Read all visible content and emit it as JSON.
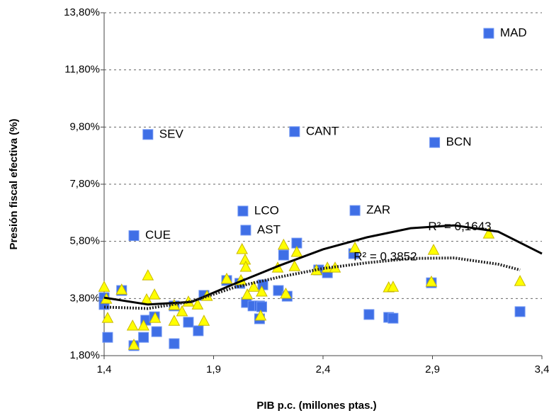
{
  "chart_data": {
    "type": "scatter",
    "x_label": "PIB p.c. (millones ptas.)",
    "y_label": "Presión fiscal efectiva (%)",
    "xlim": [
      1.4,
      3.4
    ],
    "ylim": [
      1.8,
      13.8
    ],
    "xticks": [
      {
        "value": 1.4,
        "label": "1,4"
      },
      {
        "value": 1.9,
        "label": "1,9"
      },
      {
        "value": 2.4,
        "label": "2,4"
      },
      {
        "value": 2.9,
        "label": "2,9"
      },
      {
        "value": 3.4,
        "label": "3,4"
      }
    ],
    "yticks": [
      {
        "value": 1.8,
        "label": "1,80%"
      },
      {
        "value": 3.8,
        "label": "3,80%"
      },
      {
        "value": 5.8,
        "label": "5,80%"
      },
      {
        "value": 7.8,
        "label": "7,80%"
      },
      {
        "value": 9.8,
        "label": "9,80%"
      },
      {
        "value": 11.8,
        "label": "11,80%"
      },
      {
        "value": 13.8,
        "label": "13,80%"
      }
    ],
    "grid": true,
    "series": [
      {
        "marker": "square",
        "color": "#3f6fe6",
        "x": [
          3.157,
          1.6,
          2.27,
          2.91,
          2.546,
          2.034,
          2.047,
          1.536,
          1.4,
          1.4,
          1.416,
          1.48,
          1.536,
          1.58,
          1.59,
          1.63,
          1.64,
          1.72,
          1.72,
          1.785,
          1.83,
          1.856,
          1.96,
          2.02,
          2.05,
          2.08,
          2.11,
          2.12,
          2.11,
          2.196,
          2.125,
          2.22,
          2.236,
          2.28,
          2.38,
          2.42,
          2.54,
          2.61,
          2.7,
          2.72,
          2.895,
          3.3
        ],
        "values": [
          13.08,
          9.54,
          9.64,
          9.26,
          6.88,
          6.86,
          6.19,
          6.0,
          3.83,
          3.59,
          2.44,
          4.08,
          2.15,
          2.44,
          3.04,
          3.16,
          2.64,
          2.22,
          3.54,
          2.97,
          2.67,
          3.91,
          4.43,
          4.33,
          3.66,
          3.54,
          3.54,
          3.51,
          3.09,
          4.08,
          4.28,
          5.32,
          3.88,
          5.74,
          4.8,
          4.7,
          5.37,
          3.24,
          3.14,
          3.11,
          4.35,
          3.34
        ],
        "labels": [
          "MAD",
          "SEV",
          "CANT",
          "BCN",
          "ZAR",
          "LCO",
          "AST",
          "CUE",
          null,
          null,
          null,
          null,
          null,
          null,
          null,
          null,
          null,
          null,
          null,
          null,
          null,
          null,
          null,
          null,
          null,
          null,
          null,
          null,
          null,
          null,
          null,
          null,
          null,
          null,
          null,
          null,
          null,
          null,
          null,
          null,
          null,
          null
        ]
      },
      {
        "marker": "triangle",
        "color": "#ffff00",
        "x": [
          1.4,
          1.41,
          1.416,
          1.48,
          1.53,
          1.536,
          1.58,
          1.594,
          1.6,
          1.63,
          1.633,
          1.72,
          1.72,
          1.756,
          1.785,
          1.827,
          1.856,
          1.87,
          1.96,
          2.025,
          2.03,
          2.044,
          2.047,
          2.054,
          2.083,
          2.12,
          2.115,
          2.193,
          2.22,
          2.23,
          2.27,
          2.28,
          2.37,
          2.42,
          2.455,
          2.546,
          2.7,
          2.72,
          2.905,
          2.895,
          3.157,
          3.3
        ],
        "values": [
          4.2,
          3.78,
          3.11,
          4.1,
          2.84,
          2.17,
          2.84,
          3.76,
          4.6,
          3.93,
          3.11,
          3.56,
          3.01,
          3.34,
          3.68,
          3.58,
          3.01,
          3.88,
          4.48,
          4.43,
          5.52,
          5.15,
          4.9,
          3.93,
          4.2,
          4.03,
          3.19,
          4.87,
          5.67,
          3.96,
          4.92,
          5.42,
          4.78,
          4.87,
          4.87,
          5.57,
          4.18,
          4.2,
          5.49,
          4.38,
          6.06,
          4.4
        ]
      }
    ],
    "trendlines": [
      {
        "style": "solid",
        "color": "#000000",
        "label": "R² = 0,1643",
        "label_x": 2.88,
        "label_y": 6.3,
        "x": [
          1.4,
          1.6,
          1.8,
          2.0,
          2.2,
          2.4,
          2.6,
          2.8,
          3.0,
          3.2,
          3.4
        ],
        "values": [
          3.83,
          3.59,
          3.68,
          4.33,
          4.95,
          5.52,
          5.94,
          6.26,
          6.36,
          6.14,
          5.37
        ]
      },
      {
        "style": "dotted",
        "color": "#222222",
        "label": "R² = 0,3852",
        "label_x": 2.54,
        "label_y": 5.25,
        "x": [
          1.4,
          1.6,
          1.8,
          2.0,
          2.2,
          2.4,
          2.6,
          2.8,
          3.0,
          3.2,
          3.3
        ],
        "values": [
          3.5,
          3.45,
          3.7,
          4.2,
          4.55,
          4.85,
          5.05,
          5.2,
          5.22,
          5.0,
          4.8
        ]
      }
    ]
  }
}
